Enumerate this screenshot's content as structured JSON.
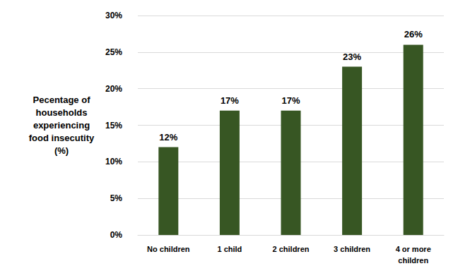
{
  "chart_data": {
    "type": "bar",
    "y_label": "Pecentage of households experiencing food insecutity (%)",
    "categories": [
      "No children",
      "1 child",
      "2 children",
      "3 children",
      "4 or more children"
    ],
    "values": [
      12,
      17,
      17,
      23,
      26
    ],
    "value_labels": [
      "12%",
      "17%",
      "17%",
      "23%",
      "26%"
    ],
    "color": "#375623",
    "ylim": [
      0,
      30
    ],
    "yticks": [
      {
        "value": 0,
        "label": "0%"
      },
      {
        "value": 5,
        "label": "5%"
      },
      {
        "value": 10,
        "label": "10%"
      },
      {
        "value": 15,
        "label": "15%"
      },
      {
        "value": 20,
        "label": "20%"
      },
      {
        "value": 25,
        "label": "25%"
      },
      {
        "value": 30,
        "label": "30%"
      }
    ],
    "grid": true,
    "data_labels": true
  }
}
